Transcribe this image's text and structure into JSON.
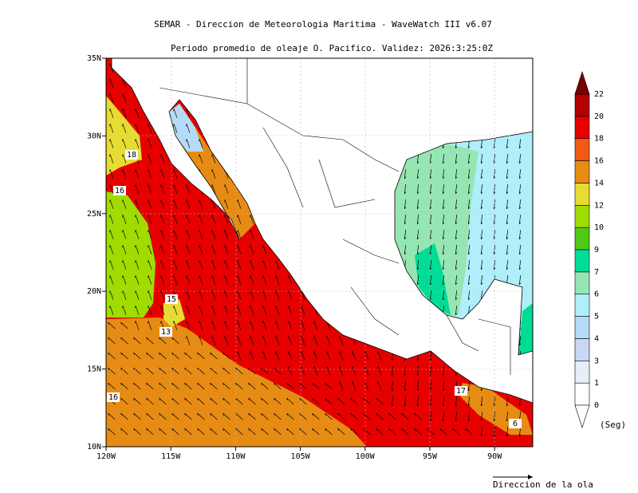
{
  "header": {
    "title": "SEMAR - Direccion de Meteorologia Maritima - WaveWatch III v6.07",
    "subtitle": "Periodo promedio de oleaje O. Pacifico. Validez: 2026:3:25:0Z"
  },
  "map": {
    "lon_labels": [
      "120W",
      "115W",
      "110W",
      "105W",
      "100W",
      "95W",
      "90W"
    ],
    "lat_labels": [
      "10N",
      "15N",
      "20N",
      "25N",
      "30N",
      "35N"
    ],
    "contour_labels": [
      "18",
      "16",
      "15",
      "13",
      "16",
      "17",
      "6"
    ]
  },
  "colorbar": {
    "labels": [
      "0",
      "1",
      "3",
      "4",
      "5",
      "6",
      "7",
      "9",
      "10",
      "12",
      "14",
      "16",
      "18",
      "20",
      "22"
    ],
    "colors": [
      "#ffffff",
      "#e6eef8",
      "#c8d8f4",
      "#b4dcf8",
      "#b0eefa",
      "#96e6b4",
      "#00dc96",
      "#50c814",
      "#a0dc00",
      "#e6dc32",
      "#e68c14",
      "#f05a14",
      "#e60000",
      "#b40000"
    ],
    "over_color": "#780000",
    "unit": "(Seg)"
  },
  "legend": {
    "arrow_label": "Direccion de la ola"
  }
}
